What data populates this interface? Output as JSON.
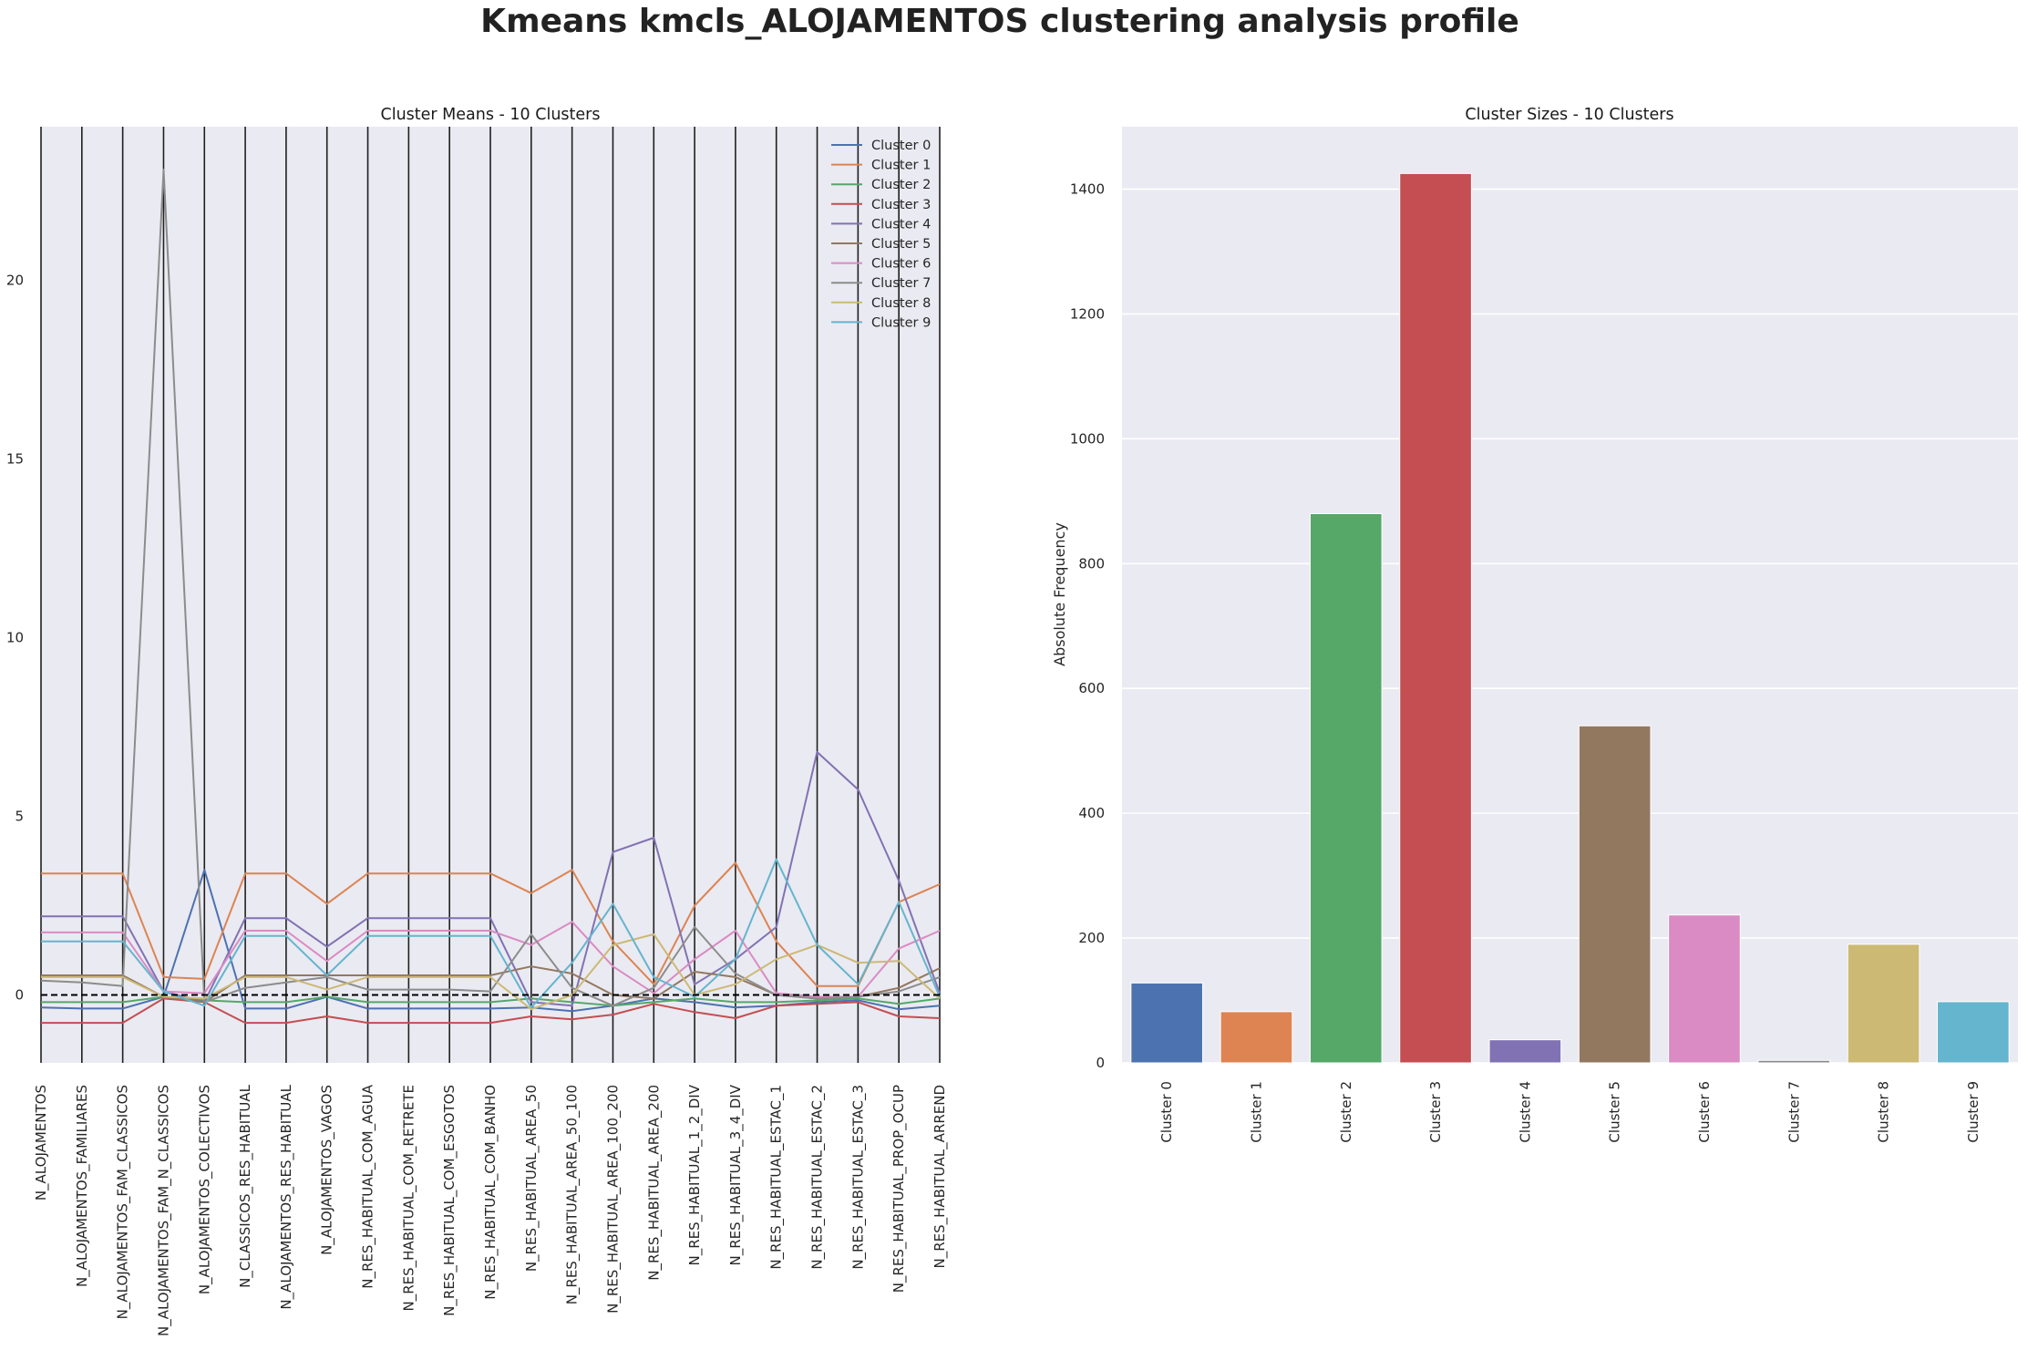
{
  "figure": {
    "title": "Kmeans kmcls_ALOJAMENTOS clustering analysis profile"
  },
  "chart_data": [
    {
      "type": "line",
      "title": "Cluster Means - 10 Clusters",
      "xlabel": "",
      "ylabel": "",
      "ylim": [
        -1.9,
        24.3
      ],
      "yticks": [
        0,
        5,
        10,
        15,
        20
      ],
      "grid": false,
      "reference_line": {
        "y": 0,
        "style": "dashed",
        "color": "#000000"
      },
      "vertical_lines": "at every x category",
      "legend_position": "upper right",
      "categories": [
        "N_ALOJAMENTOS",
        "N_ALOJAMENTOS_FAMILIARES",
        "N_ALOJAMENTOS_FAM_CLASSICOS",
        "N_ALOJAMENTOS_FAM_N_CLASSICOS",
        "N_ALOJAMENTOS_COLECTIVOS",
        "N_CLASSICOS_RES_HABITUAL",
        "N_ALOJAMENTOS_RES_HABITUAL",
        "N_ALOJAMENTOS_VAGOS",
        "N_RES_HABITUAL_COM_AGUA",
        "N_RES_HABITUAL_COM_RETRETE",
        "N_RES_HABITUAL_COM_ESGOTOS",
        "N_RES_HABITUAL_COM_BANHO",
        "N_RES_HABITUAL_AREA_50",
        "N_RES_HABITUAL_AREA_50_100",
        "N_RES_HABITUAL_AREA_100_200",
        "N_RES_HABITUAL_AREA_200",
        "N_RES_HABITUAL_1_2_DIV",
        "N_RES_HABITUAL_3_4_DIV",
        "N_RES_HABITUAL_ESTAC_1",
        "N_RES_HABITUAL_ESTAC_2",
        "N_RES_HABITUAL_ESTAC_3",
        "N_RES_HABITUAL_PROP_OCUP",
        "N_RES_HABITUAL_ARREND"
      ],
      "series": [
        {
          "name": "Cluster 0",
          "color": "#4c72b0",
          "values": [
            -0.35,
            -0.38,
            -0.38,
            -0.05,
            3.5,
            -0.38,
            -0.38,
            -0.05,
            -0.38,
            -0.38,
            -0.38,
            -0.38,
            -0.35,
            -0.45,
            -0.3,
            -0.1,
            -0.2,
            -0.35,
            -0.3,
            -0.2,
            -0.15,
            -0.4,
            -0.3
          ]
        },
        {
          "name": "Cluster 1",
          "color": "#dd8452",
          "values": [
            3.4,
            3.4,
            3.4,
            0.5,
            0.45,
            3.4,
            3.4,
            2.55,
            3.4,
            3.4,
            3.4,
            3.4,
            2.85,
            3.5,
            1.5,
            0.3,
            2.5,
            3.7,
            1.5,
            0.25,
            0.25,
            2.6,
            3.1
          ]
        },
        {
          "name": "Cluster 2",
          "color": "#55a868",
          "values": [
            -0.2,
            -0.2,
            -0.2,
            -0.05,
            -0.15,
            -0.2,
            -0.2,
            -0.05,
            -0.2,
            -0.2,
            -0.2,
            -0.2,
            -0.1,
            -0.2,
            -0.3,
            -0.2,
            -0.1,
            -0.2,
            -0.2,
            -0.15,
            -0.1,
            -0.25,
            -0.1
          ]
        },
        {
          "name": "Cluster 3",
          "color": "#c44e52",
          "values": [
            -0.78,
            -0.78,
            -0.78,
            -0.1,
            -0.2,
            -0.78,
            -0.78,
            -0.6,
            -0.78,
            -0.78,
            -0.78,
            -0.78,
            -0.6,
            -0.68,
            -0.55,
            -0.25,
            -0.48,
            -0.65,
            -0.3,
            -0.25,
            -0.2,
            -0.6,
            -0.65
          ]
        },
        {
          "name": "Cluster 4",
          "color": "#8172b3",
          "values": [
            2.2,
            2.2,
            2.2,
            0.1,
            -0.2,
            2.15,
            2.15,
            1.35,
            2.15,
            2.15,
            2.15,
            2.15,
            -0.2,
            -0.3,
            4.0,
            4.4,
            0.3,
            1.0,
            1.9,
            6.8,
            5.75,
            3.2,
            0.05
          ]
        },
        {
          "name": "Cluster 5",
          "color": "#937860",
          "values": [
            0.55,
            0.55,
            0.55,
            -0.05,
            -0.2,
            0.55,
            0.55,
            0.55,
            0.55,
            0.55,
            0.55,
            0.55,
            0.8,
            0.6,
            0.0,
            -0.1,
            0.65,
            0.5,
            0.0,
            -0.1,
            -0.05,
            0.2,
            0.75
          ]
        },
        {
          "name": "Cluster 6",
          "color": "#da8bc3",
          "values": [
            1.75,
            1.75,
            1.75,
            0.1,
            0.05,
            1.8,
            1.8,
            0.95,
            1.8,
            1.8,
            1.8,
            1.8,
            1.4,
            2.05,
            0.8,
            0.05,
            1.0,
            1.8,
            0.05,
            -0.05,
            -0.05,
            1.3,
            1.8
          ]
        },
        {
          "name": "Cluster 7",
          "color": "#8c8c8c",
          "values": [
            0.4,
            0.35,
            0.25,
            23.1,
            -0.2,
            0.2,
            0.35,
            0.5,
            0.15,
            0.15,
            0.15,
            0.1,
            1.7,
            0.2,
            -0.3,
            0.2,
            1.9,
            0.6,
            0.0,
            -0.1,
            -0.05,
            0.1,
            0.5
          ]
        },
        {
          "name": "Cluster 8",
          "color": "#ccb974",
          "values": [
            0.5,
            0.5,
            0.5,
            -0.05,
            -0.1,
            0.5,
            0.5,
            0.15,
            0.5,
            0.5,
            0.5,
            0.5,
            -0.4,
            0.0,
            1.4,
            1.7,
            0.0,
            0.3,
            1.0,
            1.4,
            0.9,
            0.95,
            -0.1
          ]
        },
        {
          "name": "Cluster 9",
          "color": "#64b5cd",
          "values": [
            1.5,
            1.5,
            1.5,
            0.1,
            -0.3,
            1.65,
            1.65,
            0.55,
            1.65,
            1.65,
            1.65,
            1.65,
            -0.35,
            0.9,
            2.55,
            0.5,
            -0.05,
            1.0,
            3.8,
            1.4,
            0.3,
            2.6,
            -0.05
          ]
        }
      ]
    },
    {
      "type": "bar",
      "title": "Cluster Sizes - 10 Clusters",
      "xlabel": "",
      "ylabel": "Absolute Frequency",
      "ylim": [
        0,
        1500
      ],
      "yticks": [
        0,
        200,
        400,
        600,
        800,
        1000,
        1200,
        1400
      ],
      "grid": true,
      "categories": [
        "Cluster 0",
        "Cluster 1",
        "Cluster 2",
        "Cluster 3",
        "Cluster 4",
        "Cluster 5",
        "Cluster 6",
        "Cluster 7",
        "Cluster 8",
        "Cluster 9"
      ],
      "values": [
        128,
        82,
        880,
        1425,
        37,
        540,
        237,
        4,
        190,
        98
      ],
      "colors": [
        "#4c72b0",
        "#dd8452",
        "#55a868",
        "#c44e52",
        "#8172b3",
        "#937860",
        "#da8bc3",
        "#8c8c8c",
        "#ccb974",
        "#64b5cd"
      ]
    }
  ]
}
